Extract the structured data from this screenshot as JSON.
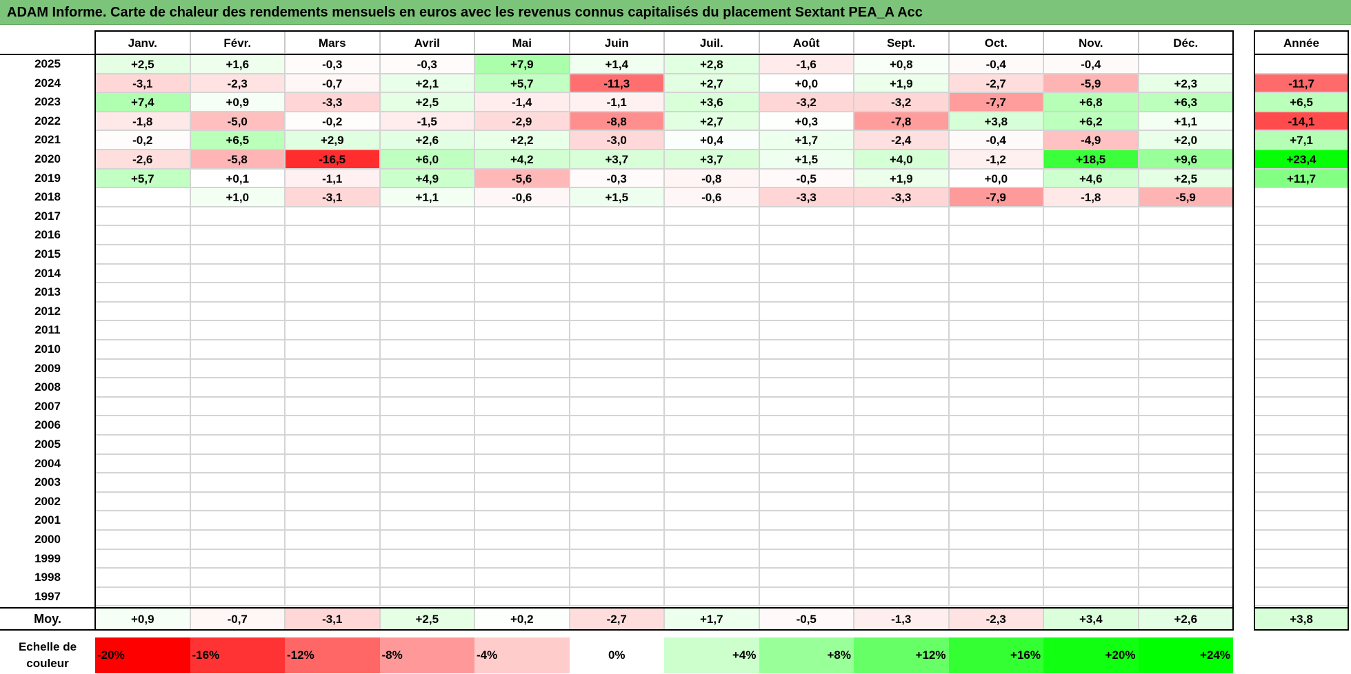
{
  "title": "ADAM Informe. Carte de chaleur des rendements mensuels en euros avec les revenus connus capitalisés du placement Sextant PEA_A Acc",
  "colors": {
    "title_bg": "#7dc47b"
  },
  "chart_data": {
    "type": "heatmap",
    "months": [
      "Janv.",
      "Févr.",
      "Mars",
      "Avril",
      "Mai",
      "Juin",
      "Juil.",
      "Août",
      "Sept.",
      "Oct.",
      "Nov.",
      "Déc."
    ],
    "year_header": "Année",
    "rows": [
      {
        "year": "2025",
        "values": [
          "+2,5",
          "+1,6",
          "-0,3",
          "-0,3",
          "+7,9",
          "+1,4",
          "+2,8",
          "-1,6",
          "+0,8",
          "-0,4",
          "-0,4",
          ""
        ],
        "annual": ""
      },
      {
        "year": "2024",
        "values": [
          "-3,1",
          "-2,3",
          "-0,7",
          "+2,1",
          "+5,7",
          "-11,3",
          "+2,7",
          "+0,0",
          "+1,9",
          "-2,7",
          "-5,9",
          "+2,3"
        ],
        "annual": "-11,7"
      },
      {
        "year": "2023",
        "values": [
          "+7,4",
          "+0,9",
          "-3,3",
          "+2,5",
          "-1,4",
          "-1,1",
          "+3,6",
          "-3,2",
          "-3,2",
          "-7,7",
          "+6,8",
          "+6,3"
        ],
        "annual": "+6,5"
      },
      {
        "year": "2022",
        "values": [
          "-1,8",
          "-5,0",
          "-0,2",
          "-1,5",
          "-2,9",
          "-8,8",
          "+2,7",
          "+0,3",
          "-7,8",
          "+3,8",
          "+6,2",
          "+1,1"
        ],
        "annual": "-14,1"
      },
      {
        "year": "2021",
        "values": [
          "-0,2",
          "+6,5",
          "+2,9",
          "+2,6",
          "+2,2",
          "-3,0",
          "+0,4",
          "+1,7",
          "-2,4",
          "-0,4",
          "-4,9",
          "+2,0"
        ],
        "annual": "+7,1"
      },
      {
        "year": "2020",
        "values": [
          "-2,6",
          "-5,8",
          "-16,5",
          "+6,0",
          "+4,2",
          "+3,7",
          "+3,7",
          "+1,5",
          "+4,0",
          "-1,2",
          "+18,5",
          "+9,6"
        ],
        "annual": "+23,4"
      },
      {
        "year": "2019",
        "values": [
          "+5,7",
          "+0,1",
          "-1,1",
          "+4,9",
          "-5,6",
          "-0,3",
          "-0,8",
          "-0,5",
          "+1,9",
          "+0,0",
          "+4,6",
          "+2,5"
        ],
        "annual": "+11,7"
      },
      {
        "year": "2018",
        "values": [
          "",
          "+1,0",
          "-3,1",
          "+1,1",
          "-0,6",
          "+1,5",
          "-0,6",
          "-3,3",
          "-3,3",
          "-7,9",
          "-1,8",
          "-5,9"
        ],
        "annual": ""
      },
      {
        "year": "2017",
        "values": [
          "",
          "",
          "",
          "",
          "",
          "",
          "",
          "",
          "",
          "",
          "",
          ""
        ],
        "annual": ""
      },
      {
        "year": "2016",
        "values": [
          "",
          "",
          "",
          "",
          "",
          "",
          "",
          "",
          "",
          "",
          "",
          ""
        ],
        "annual": ""
      },
      {
        "year": "2015",
        "values": [
          "",
          "",
          "",
          "",
          "",
          "",
          "",
          "",
          "",
          "",
          "",
          ""
        ],
        "annual": ""
      },
      {
        "year": "2014",
        "values": [
          "",
          "",
          "",
          "",
          "",
          "",
          "",
          "",
          "",
          "",
          "",
          ""
        ],
        "annual": ""
      },
      {
        "year": "2013",
        "values": [
          "",
          "",
          "",
          "",
          "",
          "",
          "",
          "",
          "",
          "",
          "",
          ""
        ],
        "annual": ""
      },
      {
        "year": "2012",
        "values": [
          "",
          "",
          "",
          "",
          "",
          "",
          "",
          "",
          "",
          "",
          "",
          ""
        ],
        "annual": ""
      },
      {
        "year": "2011",
        "values": [
          "",
          "",
          "",
          "",
          "",
          "",
          "",
          "",
          "",
          "",
          "",
          ""
        ],
        "annual": ""
      },
      {
        "year": "2010",
        "values": [
          "",
          "",
          "",
          "",
          "",
          "",
          "",
          "",
          "",
          "",
          "",
          ""
        ],
        "annual": ""
      },
      {
        "year": "2009",
        "values": [
          "",
          "",
          "",
          "",
          "",
          "",
          "",
          "",
          "",
          "",
          "",
          ""
        ],
        "annual": ""
      },
      {
        "year": "2008",
        "values": [
          "",
          "",
          "",
          "",
          "",
          "",
          "",
          "",
          "",
          "",
          "",
          ""
        ],
        "annual": ""
      },
      {
        "year": "2007",
        "values": [
          "",
          "",
          "",
          "",
          "",
          "",
          "",
          "",
          "",
          "",
          "",
          ""
        ],
        "annual": ""
      },
      {
        "year": "2006",
        "values": [
          "",
          "",
          "",
          "",
          "",
          "",
          "",
          "",
          "",
          "",
          "",
          ""
        ],
        "annual": ""
      },
      {
        "year": "2005",
        "values": [
          "",
          "",
          "",
          "",
          "",
          "",
          "",
          "",
          "",
          "",
          "",
          ""
        ],
        "annual": ""
      },
      {
        "year": "2004",
        "values": [
          "",
          "",
          "",
          "",
          "",
          "",
          "",
          "",
          "",
          "",
          "",
          ""
        ],
        "annual": ""
      },
      {
        "year": "2003",
        "values": [
          "",
          "",
          "",
          "",
          "",
          "",
          "",
          "",
          "",
          "",
          "",
          ""
        ],
        "annual": ""
      },
      {
        "year": "2002",
        "values": [
          "",
          "",
          "",
          "",
          "",
          "",
          "",
          "",
          "",
          "",
          "",
          ""
        ],
        "annual": ""
      },
      {
        "year": "2001",
        "values": [
          "",
          "",
          "",
          "",
          "",
          "",
          "",
          "",
          "",
          "",
          "",
          ""
        ],
        "annual": ""
      },
      {
        "year": "2000",
        "values": [
          "",
          "",
          "",
          "",
          "",
          "",
          "",
          "",
          "",
          "",
          "",
          ""
        ],
        "annual": ""
      },
      {
        "year": "1999",
        "values": [
          "",
          "",
          "",
          "",
          "",
          "",
          "",
          "",
          "",
          "",
          "",
          ""
        ],
        "annual": ""
      },
      {
        "year": "1998",
        "values": [
          "",
          "",
          "",
          "",
          "",
          "",
          "",
          "",
          "",
          "",
          "",
          ""
        ],
        "annual": ""
      },
      {
        "year": "1997",
        "values": [
          "",
          "",
          "",
          "",
          "",
          "",
          "",
          "",
          "",
          "",
          "",
          ""
        ],
        "annual": ""
      }
    ],
    "average": {
      "label": "Moy.",
      "values": [
        "+0,9",
        "-0,7",
        "-3,1",
        "+2,5",
        "+0,2",
        "-2,7",
        "+1,7",
        "-0,5",
        "-1,3",
        "-2,3",
        "+3,4",
        "+2,6"
      ],
      "annual": "+3,8"
    },
    "scale": {
      "label": "Echelle de couleur",
      "steps": [
        {
          "label": "-20%",
          "value": -20,
          "color": "#ff0000"
        },
        {
          "label": "-16%",
          "value": -16,
          "color": "#ff3333"
        },
        {
          "label": "-12%",
          "value": -12,
          "color": "#ff6666"
        },
        {
          "label": "-8%",
          "value": -8,
          "color": "#ff9999"
        },
        {
          "label": "-4%",
          "value": -4,
          "color": "#ffcccc"
        },
        {
          "label": "0%",
          "value": 0,
          "color": "#ffffff"
        },
        {
          "label": "+4%",
          "value": 4,
          "color": "#ccffcc"
        },
        {
          "label": "+8%",
          "value": 8,
          "color": "#99ff99"
        },
        {
          "label": "+12%",
          "value": 12,
          "color": "#66ff66"
        },
        {
          "label": "+16%",
          "value": 16,
          "color": "#33ff33"
        },
        {
          "label": "+20%",
          "value": 20,
          "color": "#11ff11"
        },
        {
          "label": "+24%",
          "value": 24,
          "color": "#00ff00"
        }
      ]
    }
  }
}
